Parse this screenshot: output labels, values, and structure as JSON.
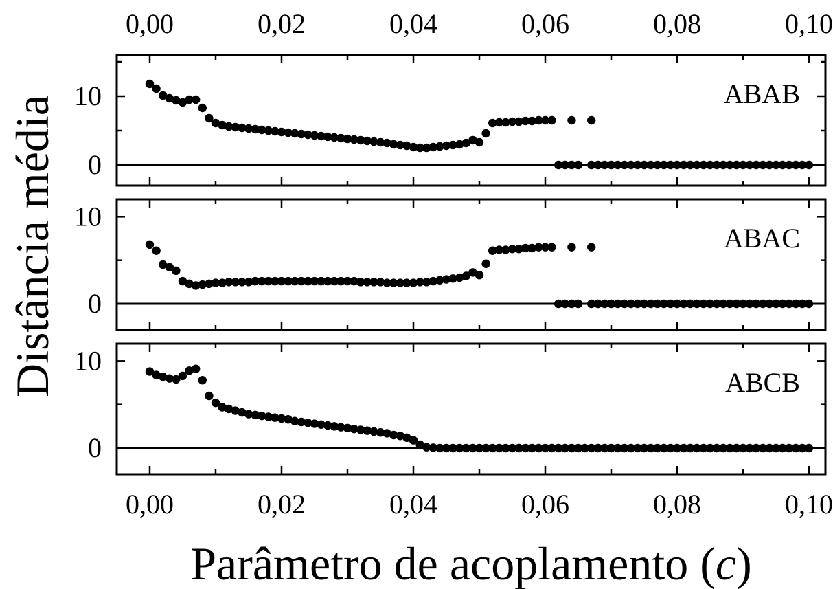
{
  "chart_data": [
    {
      "type": "scatter",
      "panel_label": "ABAB",
      "xlim": [
        -0.005,
        0.1025
      ],
      "ylim": [
        -3,
        16
      ],
      "yticks": [
        0,
        10
      ],
      "ytick_labels": [
        "0",
        "10"
      ],
      "zero_line": true,
      "series": [
        {
          "x": [
            0.0,
            0.001,
            0.002,
            0.003,
            0.004,
            0.005,
            0.006,
            0.007,
            0.008,
            0.009,
            0.01,
            0.011,
            0.012,
            0.013,
            0.014,
            0.015,
            0.016,
            0.017,
            0.018,
            0.019,
            0.02,
            0.021,
            0.022,
            0.023,
            0.024,
            0.025,
            0.026,
            0.027,
            0.028,
            0.029,
            0.03,
            0.031,
            0.032,
            0.033,
            0.034,
            0.035,
            0.036,
            0.037,
            0.038,
            0.039,
            0.04,
            0.041,
            0.042,
            0.043,
            0.044,
            0.045,
            0.046,
            0.047,
            0.048,
            0.049,
            0.05,
            0.051,
            0.052,
            0.053,
            0.054,
            0.055,
            0.056,
            0.057,
            0.058,
            0.059,
            0.06,
            0.061,
            0.062,
            0.063,
            0.064,
            0.065,
            0.067,
            0.068,
            0.069,
            0.07,
            0.071,
            0.072,
            0.073,
            0.074,
            0.075,
            0.076,
            0.077,
            0.078,
            0.079,
            0.08,
            0.081,
            0.082,
            0.083,
            0.084,
            0.085,
            0.086,
            0.087,
            0.088,
            0.089,
            0.09,
            0.091,
            0.092,
            0.093,
            0.094,
            0.095,
            0.096,
            0.097,
            0.098,
            0.099,
            0.1,
            0.064,
            0.067
          ],
          "y": [
            11.8,
            11.1,
            10.1,
            9.7,
            9.4,
            9.1,
            9.5,
            9.5,
            8.3,
            6.8,
            6.1,
            5.8,
            5.6,
            5.5,
            5.4,
            5.3,
            5.2,
            5.1,
            5.0,
            4.9,
            4.8,
            4.7,
            4.6,
            4.5,
            4.4,
            4.3,
            4.2,
            4.1,
            4.0,
            3.9,
            3.8,
            3.7,
            3.6,
            3.5,
            3.4,
            3.3,
            3.2,
            3.0,
            2.9,
            2.8,
            2.6,
            2.5,
            2.5,
            2.6,
            2.7,
            2.8,
            2.9,
            3.0,
            3.2,
            3.6,
            3.3,
            4.6,
            6.1,
            6.2,
            6.2,
            6.3,
            6.3,
            6.4,
            6.4,
            6.5,
            6.5,
            6.5,
            0,
            0,
            0,
            0,
            0,
            0,
            0,
            0,
            0,
            0,
            0,
            0,
            0,
            0,
            0,
            0,
            0,
            0,
            0,
            0,
            0,
            0,
            0,
            0,
            0,
            0,
            0,
            0,
            0,
            0,
            0,
            0,
            0,
            0,
            0,
            0,
            0,
            0,
            6.5,
            6.5
          ]
        }
      ]
    },
    {
      "type": "scatter",
      "panel_label": "ABAC",
      "xlim": [
        -0.005,
        0.1025
      ],
      "ylim": [
        -3,
        12
      ],
      "yticks": [
        0,
        10
      ],
      "ytick_labels": [
        "0",
        "10"
      ],
      "zero_line": true,
      "series": [
        {
          "x": [
            0.0,
            0.001,
            0.002,
            0.003,
            0.004,
            0.005,
            0.006,
            0.007,
            0.008,
            0.009,
            0.01,
            0.011,
            0.012,
            0.013,
            0.014,
            0.015,
            0.016,
            0.017,
            0.018,
            0.019,
            0.02,
            0.021,
            0.022,
            0.023,
            0.024,
            0.025,
            0.026,
            0.027,
            0.028,
            0.029,
            0.03,
            0.031,
            0.032,
            0.033,
            0.034,
            0.035,
            0.036,
            0.037,
            0.038,
            0.039,
            0.04,
            0.041,
            0.042,
            0.043,
            0.044,
            0.045,
            0.046,
            0.047,
            0.048,
            0.049,
            0.05,
            0.051,
            0.052,
            0.053,
            0.054,
            0.055,
            0.056,
            0.057,
            0.058,
            0.059,
            0.06,
            0.061,
            0.062,
            0.063,
            0.064,
            0.065,
            0.067,
            0.068,
            0.069,
            0.07,
            0.071,
            0.072,
            0.073,
            0.074,
            0.075,
            0.076,
            0.077,
            0.078,
            0.079,
            0.08,
            0.081,
            0.082,
            0.083,
            0.084,
            0.085,
            0.086,
            0.087,
            0.088,
            0.089,
            0.09,
            0.091,
            0.092,
            0.093,
            0.094,
            0.095,
            0.096,
            0.097,
            0.098,
            0.099,
            0.1,
            0.064,
            0.067
          ],
          "y": [
            6.8,
            6.1,
            4.5,
            4.2,
            3.8,
            2.6,
            2.3,
            2.1,
            2.2,
            2.3,
            2.4,
            2.4,
            2.5,
            2.5,
            2.5,
            2.5,
            2.6,
            2.6,
            2.6,
            2.6,
            2.6,
            2.6,
            2.6,
            2.6,
            2.6,
            2.6,
            2.6,
            2.6,
            2.6,
            2.6,
            2.6,
            2.6,
            2.5,
            2.5,
            2.5,
            2.5,
            2.4,
            2.4,
            2.4,
            2.4,
            2.4,
            2.5,
            2.5,
            2.6,
            2.7,
            2.8,
            2.9,
            3.0,
            3.2,
            3.6,
            3.3,
            4.6,
            6.1,
            6.2,
            6.2,
            6.3,
            6.3,
            6.4,
            6.4,
            6.5,
            6.5,
            6.5,
            0,
            0,
            0,
            0,
            0,
            0,
            0,
            0,
            0,
            0,
            0,
            0,
            0,
            0,
            0,
            0,
            0,
            0,
            0,
            0,
            0,
            0,
            0,
            0,
            0,
            0,
            0,
            0,
            0,
            0,
            0,
            0,
            0,
            0,
            0,
            0,
            0,
            0,
            6.5,
            6.5
          ]
        }
      ]
    },
    {
      "type": "scatter",
      "panel_label": "ABCB",
      "xlim": [
        -0.005,
        0.1025
      ],
      "ylim": [
        -3,
        12
      ],
      "yticks": [
        0,
        10
      ],
      "ytick_labels": [
        "0",
        "10"
      ],
      "zero_line": true,
      "series": [
        {
          "x": [
            0.0,
            0.001,
            0.002,
            0.003,
            0.004,
            0.005,
            0.006,
            0.007,
            0.008,
            0.009,
            0.01,
            0.011,
            0.012,
            0.013,
            0.014,
            0.015,
            0.016,
            0.017,
            0.018,
            0.019,
            0.02,
            0.021,
            0.022,
            0.023,
            0.024,
            0.025,
            0.026,
            0.027,
            0.028,
            0.029,
            0.03,
            0.031,
            0.032,
            0.033,
            0.034,
            0.035,
            0.036,
            0.037,
            0.038,
            0.039,
            0.04,
            0.041,
            0.042,
            0.043,
            0.044,
            0.045,
            0.046,
            0.047,
            0.048,
            0.049,
            0.05,
            0.051,
            0.052,
            0.053,
            0.054,
            0.055,
            0.056,
            0.057,
            0.058,
            0.059,
            0.06,
            0.061,
            0.062,
            0.063,
            0.064,
            0.065,
            0.066,
            0.067,
            0.068,
            0.069,
            0.07,
            0.071,
            0.072,
            0.073,
            0.074,
            0.075,
            0.076,
            0.077,
            0.078,
            0.079,
            0.08,
            0.081,
            0.082,
            0.083,
            0.084,
            0.085,
            0.086,
            0.087,
            0.088,
            0.089,
            0.09,
            0.091,
            0.092,
            0.093,
            0.094,
            0.095,
            0.096,
            0.097,
            0.098,
            0.099,
            0.1
          ],
          "y": [
            8.8,
            8.4,
            8.2,
            8.0,
            7.9,
            8.3,
            8.9,
            9.1,
            7.8,
            6.0,
            5.2,
            4.7,
            4.5,
            4.3,
            4.1,
            3.9,
            3.8,
            3.7,
            3.6,
            3.5,
            3.4,
            3.3,
            3.1,
            3.0,
            2.9,
            2.8,
            2.7,
            2.6,
            2.5,
            2.4,
            2.3,
            2.2,
            2.1,
            2.0,
            1.9,
            1.8,
            1.7,
            1.5,
            1.4,
            1.2,
            0.9,
            0.4,
            0.1,
            0.05,
            0,
            0,
            0,
            0,
            0,
            0,
            0,
            0,
            0,
            0,
            0,
            0,
            0,
            0,
            0,
            0,
            0,
            0,
            0,
            0,
            0,
            0,
            0,
            0,
            0,
            0,
            0,
            0,
            0,
            0,
            0,
            0,
            0,
            0,
            0,
            0,
            0,
            0,
            0,
            0,
            0,
            0,
            0,
            0,
            0,
            0,
            0,
            0,
            0,
            0,
            0,
            0,
            0,
            0,
            0,
            0,
            0
          ]
        }
      ]
    }
  ],
  "x_axis": {
    "ticks": [
      0.0,
      0.02,
      0.04,
      0.06,
      0.08,
      0.1
    ],
    "tick_labels": [
      "0,00",
      "0,02",
      "0,04",
      "0,06",
      "0,08",
      "0,10"
    ],
    "title_main": "Parâmetro de acoplamento (",
    "title_symbol": "c",
    "title_close": ")"
  },
  "y_axis": {
    "title": "Distância média"
  }
}
